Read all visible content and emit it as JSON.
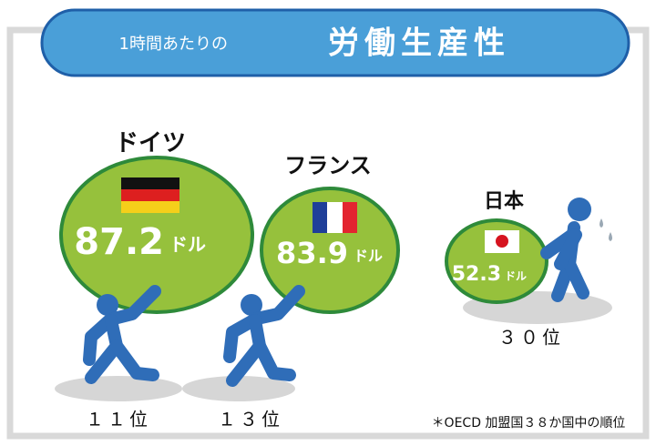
{
  "header": {
    "lead": "1時間あたりの",
    "title": "労働生産性"
  },
  "countries": [
    {
      "name": "ドイツ",
      "value": "87.2",
      "unit": "ドル",
      "rank": "１１位"
    },
    {
      "name": "フランス",
      "value": "83.9",
      "unit": "ドル",
      "rank": "１３位"
    },
    {
      "name": "日本",
      "value": "52.3",
      "unit": "ドル",
      "rank": "３０位"
    }
  ],
  "footnote": "＊OECD 加盟国３８か国中の順位"
}
